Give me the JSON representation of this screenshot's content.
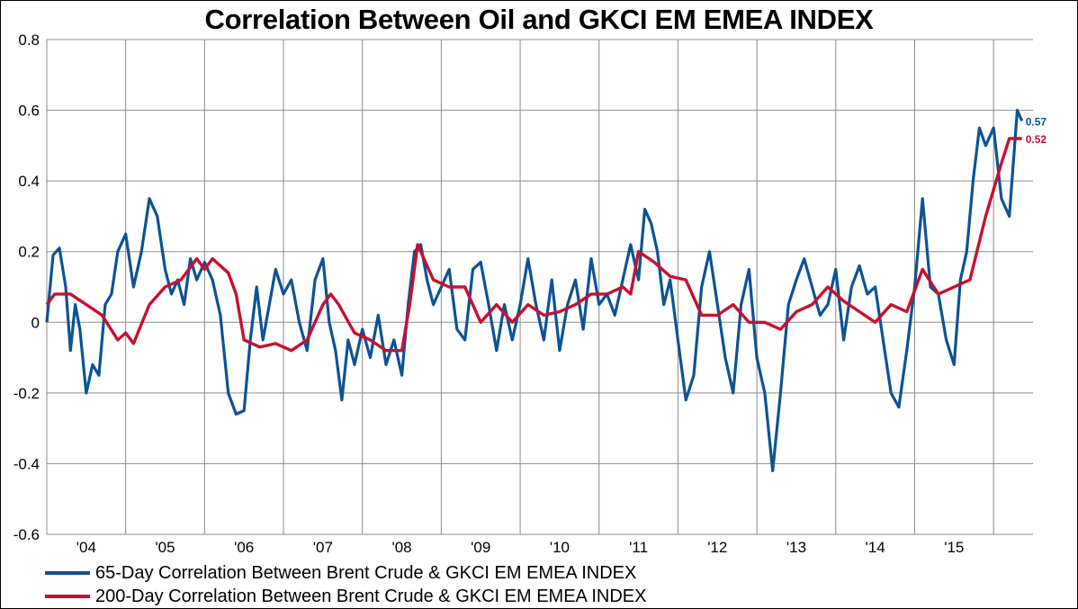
{
  "colors": {
    "series1": "#0b5394",
    "series2": "#c8102e",
    "grid": "#8c8c8c"
  },
  "chart_data": {
    "type": "line",
    "title": "Correlation Between Oil and GKCI EM EMEA INDEX",
    "xlabel": "",
    "ylabel": "",
    "ylim": [
      -0.6,
      0.8
    ],
    "xlim": [
      2003.5,
      2016.0
    ],
    "yticks": [
      "0.8",
      "0.6",
      "0.4",
      "0.2",
      "0",
      "-0.2",
      "-0.4",
      "-0.6"
    ],
    "ytick_values": [
      0.8,
      0.6,
      0.4,
      0.2,
      0,
      -0.2,
      -0.4,
      -0.6
    ],
    "xticks": [
      "'04",
      "'05",
      "'06",
      "'07",
      "'08",
      "'09",
      "'10",
      "'11",
      "'12",
      "'13",
      "'14",
      "'15"
    ],
    "xtick_values": [
      2004,
      2005,
      2006,
      2007,
      2008,
      2009,
      2010,
      2011,
      2012,
      2013,
      2014,
      2015
    ],
    "grid": true,
    "legend_position": "bottom-left",
    "series": [
      {
        "name": "65-Day Correlation Between Brent Crude & GKCI EM EMEA INDEX",
        "end_label": "0.57",
        "x": [
          2003.5,
          2003.58,
          2003.66,
          2003.74,
          2003.8,
          2003.86,
          2003.92,
          2004.0,
          2004.08,
          2004.16,
          2004.24,
          2004.32,
          2004.4,
          2004.5,
          2004.6,
          2004.7,
          2004.8,
          2004.9,
          2005.0,
          2005.08,
          2005.16,
          2005.24,
          2005.32,
          2005.4,
          2005.5,
          2005.6,
          2005.7,
          2005.8,
          2005.9,
          2006.0,
          2006.08,
          2006.16,
          2006.24,
          2006.32,
          2006.4,
          2006.5,
          2006.6,
          2006.7,
          2006.8,
          2006.9,
          2007.0,
          2007.08,
          2007.16,
          2007.24,
          2007.32,
          2007.4,
          2007.5,
          2007.6,
          2007.7,
          2007.8,
          2007.9,
          2008.0,
          2008.08,
          2008.16,
          2008.24,
          2008.32,
          2008.4,
          2008.5,
          2008.6,
          2008.7,
          2008.8,
          2008.9,
          2009.0,
          2009.1,
          2009.2,
          2009.3,
          2009.4,
          2009.5,
          2009.6,
          2009.7,
          2009.8,
          2009.9,
          2010.0,
          2010.1,
          2010.2,
          2010.3,
          2010.4,
          2010.5,
          2010.6,
          2010.7,
          2010.8,
          2010.9,
          2011.0,
          2011.08,
          2011.16,
          2011.24,
          2011.32,
          2011.4,
          2011.5,
          2011.6,
          2011.7,
          2011.8,
          2011.9,
          2012.0,
          2012.1,
          2012.2,
          2012.3,
          2012.4,
          2012.5,
          2012.6,
          2012.7,
          2012.8,
          2012.9,
          2013.0,
          2013.1,
          2013.2,
          2013.3,
          2013.4,
          2013.5,
          2013.6,
          2013.7,
          2013.8,
          2013.9,
          2014.0,
          2014.1,
          2014.2,
          2014.3,
          2014.4,
          2014.5,
          2014.6,
          2014.7,
          2014.8,
          2014.9,
          2015.0,
          2015.08,
          2015.16,
          2015.24,
          2015.32,
          2015.4,
          2015.5,
          2015.6,
          2015.7,
          2015.8,
          2015.86
        ],
        "values": [
          0.0,
          0.19,
          0.21,
          0.1,
          -0.08,
          0.05,
          -0.02,
          -0.2,
          -0.12,
          -0.15,
          0.05,
          0.08,
          0.2,
          0.25,
          0.1,
          0.2,
          0.35,
          0.3,
          0.15,
          0.08,
          0.12,
          0.05,
          0.18,
          0.12,
          0.17,
          0.12,
          0.02,
          -0.2,
          -0.26,
          -0.25,
          -0.05,
          0.1,
          -0.05,
          0.05,
          0.15,
          0.08,
          0.12,
          0.0,
          -0.08,
          0.12,
          0.18,
          0.0,
          -0.08,
          -0.22,
          -0.05,
          -0.12,
          -0.02,
          -0.1,
          0.02,
          -0.12,
          -0.05,
          -0.15,
          0.05,
          0.2,
          0.22,
          0.12,
          0.05,
          0.1,
          0.15,
          -0.02,
          -0.05,
          0.15,
          0.17,
          0.05,
          -0.08,
          0.05,
          -0.05,
          0.05,
          0.18,
          0.05,
          -0.05,
          0.12,
          -0.08,
          0.05,
          0.12,
          -0.02,
          0.18,
          0.05,
          0.08,
          0.02,
          0.12,
          0.22,
          0.12,
          0.32,
          0.28,
          0.2,
          0.05,
          0.12,
          -0.05,
          -0.22,
          -0.15,
          0.1,
          0.2,
          0.05,
          -0.1,
          -0.2,
          0.05,
          0.15,
          -0.1,
          -0.2,
          -0.42,
          -0.2,
          0.05,
          0.12,
          0.18,
          0.1,
          0.02,
          0.05,
          0.15,
          -0.05,
          0.1,
          0.16,
          0.08,
          0.1,
          -0.05,
          -0.2,
          -0.24,
          -0.08,
          0.1,
          0.35,
          0.1,
          0.08,
          -0.05,
          -0.12,
          0.12,
          0.2,
          0.4,
          0.55,
          0.5,
          0.55,
          0.35,
          0.3,
          0.6,
          0.57
        ]
      },
      {
        "name": "200-Day Correlation Between Brent Crude & GKCI EM EMEA INDEX",
        "end_label": "0.52",
        "x": [
          2003.5,
          2003.6,
          2003.8,
          2004.0,
          2004.2,
          2004.4,
          2004.5,
          2004.6,
          2004.8,
          2005.0,
          2005.2,
          2005.4,
          2005.5,
          2005.6,
          2005.8,
          2005.9,
          2006.0,
          2006.2,
          2006.4,
          2006.6,
          2006.8,
          2007.0,
          2007.1,
          2007.2,
          2007.4,
          2007.6,
          2007.8,
          2008.0,
          2008.1,
          2008.2,
          2008.4,
          2008.6,
          2008.8,
          2009.0,
          2009.2,
          2009.4,
          2009.6,
          2009.8,
          2010.0,
          2010.2,
          2010.4,
          2010.6,
          2010.8,
          2010.9,
          2011.0,
          2011.2,
          2011.4,
          2011.6,
          2011.8,
          2012.0,
          2012.2,
          2012.4,
          2012.6,
          2012.8,
          2013.0,
          2013.2,
          2013.4,
          2013.6,
          2013.8,
          2014.0,
          2014.2,
          2014.4,
          2014.6,
          2014.8,
          2015.0,
          2015.2,
          2015.4,
          2015.6,
          2015.7,
          2015.86
        ],
        "values": [
          0.05,
          0.08,
          0.08,
          0.05,
          0.02,
          -0.05,
          -0.03,
          -0.06,
          0.05,
          0.1,
          0.12,
          0.18,
          0.15,
          0.18,
          0.14,
          0.08,
          -0.05,
          -0.07,
          -0.06,
          -0.08,
          -0.05,
          0.05,
          0.08,
          0.05,
          -0.03,
          -0.05,
          -0.08,
          -0.08,
          0.05,
          0.22,
          0.12,
          0.1,
          0.1,
          0.0,
          0.05,
          0.0,
          0.05,
          0.02,
          0.03,
          0.05,
          0.08,
          0.08,
          0.1,
          0.08,
          0.2,
          0.17,
          0.13,
          0.12,
          0.02,
          0.02,
          0.05,
          0.0,
          0.0,
          -0.02,
          0.03,
          0.05,
          0.1,
          0.06,
          0.03,
          0.0,
          0.05,
          0.03,
          0.15,
          0.08,
          0.1,
          0.12,
          0.3,
          0.45,
          0.52,
          0.52
        ]
      }
    ]
  }
}
